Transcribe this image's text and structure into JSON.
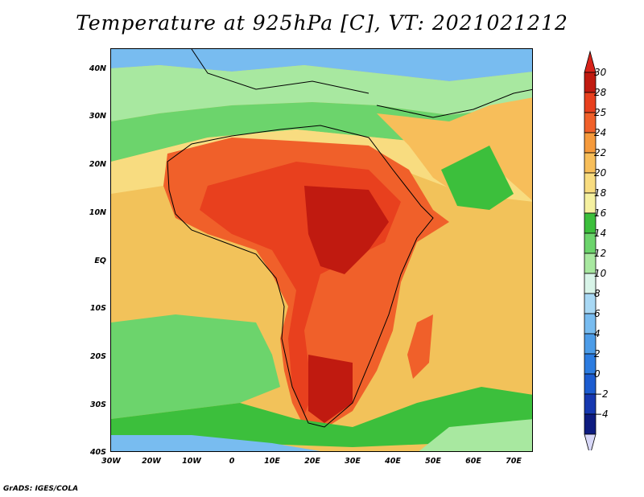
{
  "title": "Temperature at 925hPa [C], VT: 2021021212",
  "credit": "GrADS: IGES/COLA",
  "map": {
    "lat_labels": [
      "40N",
      "30N",
      "20N",
      "10N",
      "EQ",
      "10S",
      "20S",
      "30S",
      "40S"
    ],
    "lon_labels": [
      "30W",
      "20W",
      "10W",
      "0",
      "10E",
      "20E",
      "30E",
      "40E",
      "50E",
      "60E",
      "70E"
    ]
  },
  "colorbar": {
    "labels": [
      "30",
      "28",
      "25",
      "24",
      "22",
      "20",
      "18",
      "16",
      "14",
      "12",
      "10",
      "8",
      "6",
      "4",
      "2",
      "0",
      "−2",
      "−4"
    ],
    "colors": [
      "#c01a10",
      "#e8401e",
      "#f0602a",
      "#f59a3c",
      "#f7be5a",
      "#f8dc80",
      "#f5f0a0",
      "#3cbf3c",
      "#6cd46c",
      "#a8e8a0",
      "#d8f4e8",
      "#a8d8f4",
      "#78bcf0",
      "#4c9ce8",
      "#2c7ce0",
      "#1c5cd0",
      "#1638b0",
      "#0e1c80"
    ],
    "tip_top": "#d8231a",
    "tip_bottom": "#d8d8f8"
  }
}
